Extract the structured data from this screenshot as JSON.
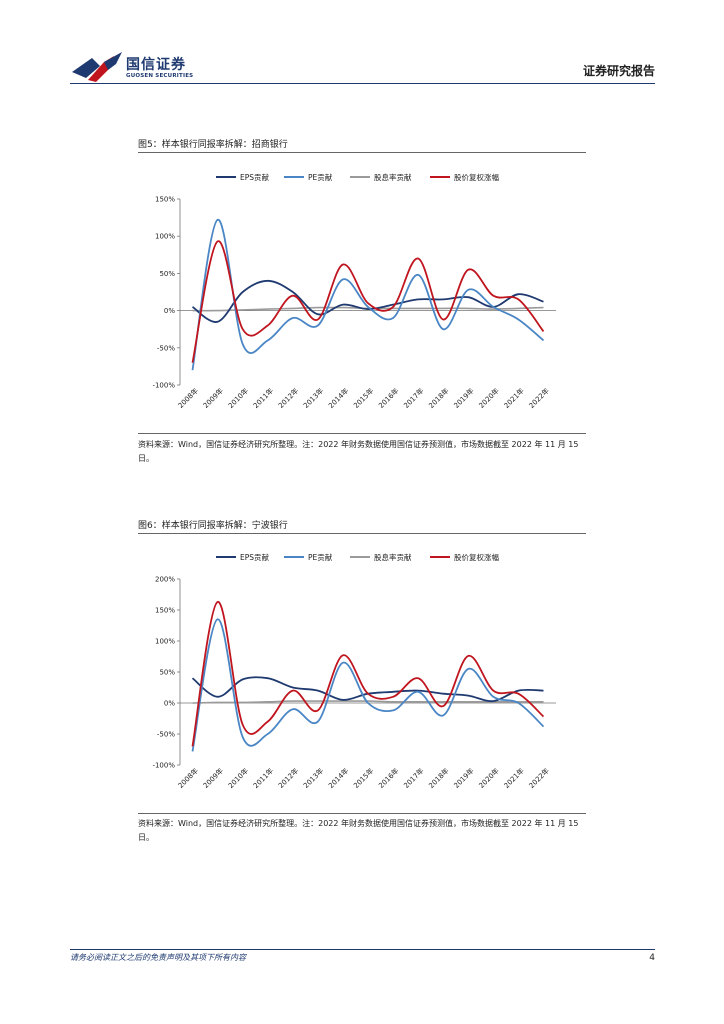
{
  "header": {
    "logo_cn": "国信证券",
    "logo_en": "GUOSEN SECURITIES",
    "report_type": "证券研究报告"
  },
  "colors": {
    "eps": "#1f3a70",
    "pe": "#4a86c5",
    "div": "#9a9a9a",
    "price": "#c0151e",
    "brand": "#1f3a70"
  },
  "figures": [
    {
      "title": "图5：样本银行同报率拆解：招商银行",
      "source": "资料来源：Wind，国信证券经济研究所整理。注：2022 年财务数据使用国信证券预测值，市场数据截至 2022 年 11 月 15 日。"
    },
    {
      "title": "图6：样本银行同报率拆解：宁波银行",
      "source": "资料来源：Wind，国信证券经济研究所整理。注：2022 年财务数据使用国信证券预测值，市场数据截至 2022 年 11 月 15 日。"
    }
  ],
  "chart_data": [
    {
      "type": "line",
      "title": "样本银行同报率拆解：招商银行",
      "categories": [
        "2008年",
        "2009年",
        "2010年",
        "2011年",
        "2012年",
        "2013年",
        "2014年",
        "2015年",
        "2016年",
        "2017年",
        "2018年",
        "2019年",
        "2020年",
        "2021年",
        "2022年"
      ],
      "y_ticks": [
        "150%",
        "100%",
        "50%",
        "0%",
        "-50%",
        "-100%"
      ],
      "ylim": [
        -100,
        150
      ],
      "legend": [
        "EPS贡献",
        "PE贡献",
        "股息率贡献",
        "股价复权涨幅"
      ],
      "series": [
        {
          "name": "EPS贡献",
          "key": "eps",
          "values": [
            5,
            -15,
            25,
            40,
            25,
            -5,
            8,
            2,
            8,
            15,
            15,
            18,
            5,
            22,
            12
          ]
        },
        {
          "name": "PE贡献",
          "key": "pe",
          "values": [
            -80,
            122,
            -45,
            -40,
            -10,
            -20,
            42,
            5,
            -10,
            48,
            -25,
            28,
            5,
            -12,
            -40
          ]
        },
        {
          "name": "股息率贡献",
          "key": "div",
          "values": [
            0,
            0,
            1,
            2,
            3,
            4,
            4,
            3,
            3,
            3,
            3,
            3,
            2,
            3,
            4
          ]
        },
        {
          "name": "股价复权涨幅",
          "key": "price",
          "values": [
            -70,
            93,
            -25,
            -20,
            20,
            -12,
            62,
            10,
            5,
            70,
            -12,
            55,
            20,
            15,
            -28
          ]
        }
      ]
    },
    {
      "type": "line",
      "title": "样本银行同报率拆解：宁波银行",
      "categories": [
        "2008年",
        "2009年",
        "2010年",
        "2011年",
        "2012年",
        "2013年",
        "2014年",
        "2015年",
        "2016年",
        "2017年",
        "2018年",
        "2019年",
        "2020年",
        "2021年",
        "2022年"
      ],
      "y_ticks": [
        "200%",
        "150%",
        "100%",
        "50%",
        "0%",
        "-50%",
        "-100%"
      ],
      "ylim": [
        -100,
        200
      ],
      "legend": [
        "EPS贡献",
        "PE贡献",
        "股息率贡献",
        "股价复权涨幅"
      ],
      "series": [
        {
          "name": "EPS贡献",
          "key": "eps",
          "values": [
            40,
            10,
            38,
            40,
            25,
            20,
            5,
            15,
            18,
            20,
            15,
            12,
            3,
            20,
            20
          ]
        },
        {
          "name": "PE贡献",
          "key": "pe",
          "values": [
            -78,
            135,
            -55,
            -50,
            -10,
            -30,
            65,
            0,
            -12,
            18,
            -20,
            55,
            10,
            0,
            -38
          ]
        },
        {
          "name": "股息率贡献",
          "key": "div",
          "values": [
            0,
            1,
            1,
            2,
            3,
            3,
            3,
            3,
            2,
            2,
            2,
            2,
            2,
            2,
            2
          ]
        },
        {
          "name": "股价复权涨幅",
          "key": "price",
          "values": [
            -70,
            163,
            -35,
            -30,
            20,
            -12,
            77,
            15,
            10,
            40,
            -5,
            76,
            20,
            15,
            -22
          ]
        }
      ]
    }
  ],
  "footer": {
    "disclaimer": "请务必阅读正文之后的免责声明及其项下所有内容",
    "page_number": "4"
  }
}
